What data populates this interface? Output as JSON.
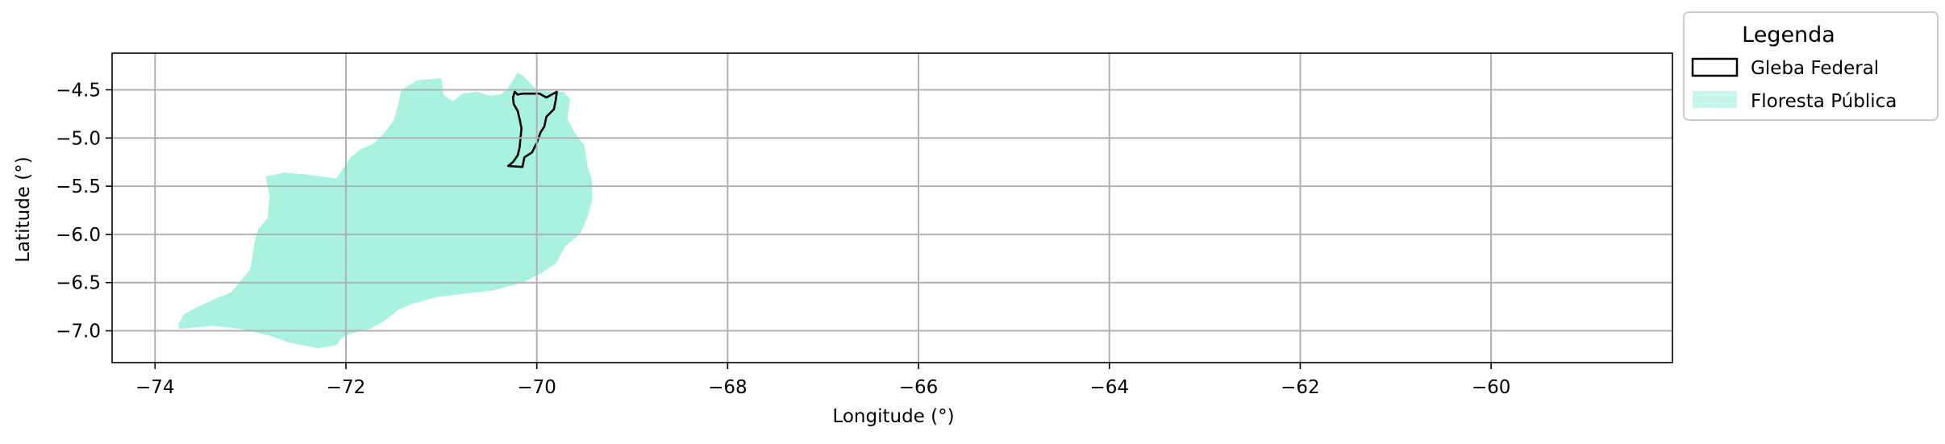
{
  "chart_data": {
    "type": "map",
    "xlabel": "Longitude (°)",
    "ylabel": "Latitude (°)",
    "xlim": [
      -74.45,
      -58.1
    ],
    "ylim": [
      -7.33,
      -4.12
    ],
    "xticks": [
      -74,
      -72,
      -70,
      -68,
      -66,
      -64,
      -62,
      -60
    ],
    "yticks": [
      -4.5,
      -5.0,
      -5.5,
      -6.0,
      -6.5,
      -7.0
    ],
    "xtick_labels": [
      "−74",
      "−72",
      "−70",
      "−68",
      "−66",
      "−64",
      "−62",
      "−60"
    ],
    "ytick_labels": [
      "−4.5",
      "−5.0",
      "−5.5",
      "−6.0",
      "−6.5",
      "−7.0"
    ],
    "grid": true,
    "legend": {
      "title": "Legenda",
      "placement": "outside-top-right",
      "entries": [
        {
          "label": "Gleba Federal",
          "style": "outline",
          "color": "#000000"
        },
        {
          "label": "Floresta Pública",
          "style": "fill",
          "color": "#a8f2df"
        }
      ]
    },
    "layers": [
      {
        "name": "Floresta Pública",
        "color": "#a8f2df",
        "polygon": [
          [
            -73.75,
            -6.92
          ],
          [
            -73.7,
            -6.83
          ],
          [
            -73.55,
            -6.75
          ],
          [
            -73.35,
            -6.66
          ],
          [
            -73.2,
            -6.6
          ],
          [
            -73.1,
            -6.48
          ],
          [
            -73.0,
            -6.36
          ],
          [
            -72.98,
            -6.23
          ],
          [
            -72.96,
            -6.1
          ],
          [
            -72.92,
            -5.95
          ],
          [
            -72.82,
            -5.83
          ],
          [
            -72.8,
            -5.6
          ],
          [
            -72.84,
            -5.4
          ],
          [
            -72.65,
            -5.36
          ],
          [
            -72.4,
            -5.38
          ],
          [
            -72.1,
            -5.42
          ],
          [
            -71.95,
            -5.2
          ],
          [
            -71.85,
            -5.12
          ],
          [
            -71.7,
            -5.05
          ],
          [
            -71.6,
            -4.95
          ],
          [
            -71.5,
            -4.82
          ],
          [
            -71.45,
            -4.65
          ],
          [
            -71.42,
            -4.5
          ],
          [
            -71.25,
            -4.4
          ],
          [
            -71.0,
            -4.38
          ],
          [
            -70.98,
            -4.55
          ],
          [
            -70.88,
            -4.62
          ],
          [
            -70.78,
            -4.54
          ],
          [
            -70.62,
            -4.52
          ],
          [
            -70.5,
            -4.56
          ],
          [
            -70.38,
            -4.55
          ],
          [
            -70.3,
            -4.48
          ],
          [
            -70.2,
            -4.32
          ],
          [
            -70.14,
            -4.36
          ],
          [
            -70.0,
            -4.5
          ],
          [
            -69.85,
            -4.52
          ],
          [
            -69.72,
            -4.52
          ],
          [
            -69.65,
            -4.6
          ],
          [
            -69.68,
            -4.8
          ],
          [
            -69.6,
            -4.95
          ],
          [
            -69.5,
            -5.08
          ],
          [
            -69.47,
            -5.28
          ],
          [
            -69.42,
            -5.45
          ],
          [
            -69.42,
            -5.65
          ],
          [
            -69.48,
            -5.85
          ],
          [
            -69.55,
            -6.0
          ],
          [
            -69.7,
            -6.12
          ],
          [
            -69.8,
            -6.3
          ],
          [
            -69.95,
            -6.4
          ],
          [
            -70.15,
            -6.5
          ],
          [
            -70.45,
            -6.58
          ],
          [
            -70.8,
            -6.62
          ],
          [
            -71.05,
            -6.65
          ],
          [
            -71.3,
            -6.72
          ],
          [
            -71.45,
            -6.78
          ],
          [
            -71.6,
            -6.9
          ],
          [
            -71.75,
            -6.98
          ],
          [
            -71.95,
            -7.03
          ],
          [
            -72.05,
            -7.08
          ],
          [
            -72.1,
            -7.15
          ],
          [
            -72.3,
            -7.18
          ],
          [
            -72.6,
            -7.12
          ],
          [
            -72.8,
            -7.05
          ],
          [
            -73.1,
            -6.98
          ],
          [
            -73.4,
            -6.95
          ],
          [
            -73.75,
            -6.98
          ]
        ]
      },
      {
        "name": "Gleba Federal",
        "color": "#000000",
        "polygon": [
          [
            -70.3,
            -5.29
          ],
          [
            -70.15,
            -5.3
          ],
          [
            -70.13,
            -5.2
          ],
          [
            -70.05,
            -5.15
          ],
          [
            -70.0,
            -5.05
          ],
          [
            -69.96,
            -4.94
          ],
          [
            -69.92,
            -4.88
          ],
          [
            -69.9,
            -4.78
          ],
          [
            -69.82,
            -4.7
          ],
          [
            -69.8,
            -4.6
          ],
          [
            -69.79,
            -4.52
          ],
          [
            -69.9,
            -4.58
          ],
          [
            -69.97,
            -4.54
          ],
          [
            -70.15,
            -4.54
          ],
          [
            -70.2,
            -4.55
          ],
          [
            -70.23,
            -4.52
          ],
          [
            -70.25,
            -4.58
          ],
          [
            -70.24,
            -4.65
          ],
          [
            -70.2,
            -4.72
          ],
          [
            -70.18,
            -4.8
          ],
          [
            -70.16,
            -4.9
          ],
          [
            -70.17,
            -5.0
          ],
          [
            -70.18,
            -5.1
          ],
          [
            -70.2,
            -5.18
          ],
          [
            -70.25,
            -5.25
          ],
          [
            -70.3,
            -5.29
          ]
        ]
      }
    ]
  }
}
